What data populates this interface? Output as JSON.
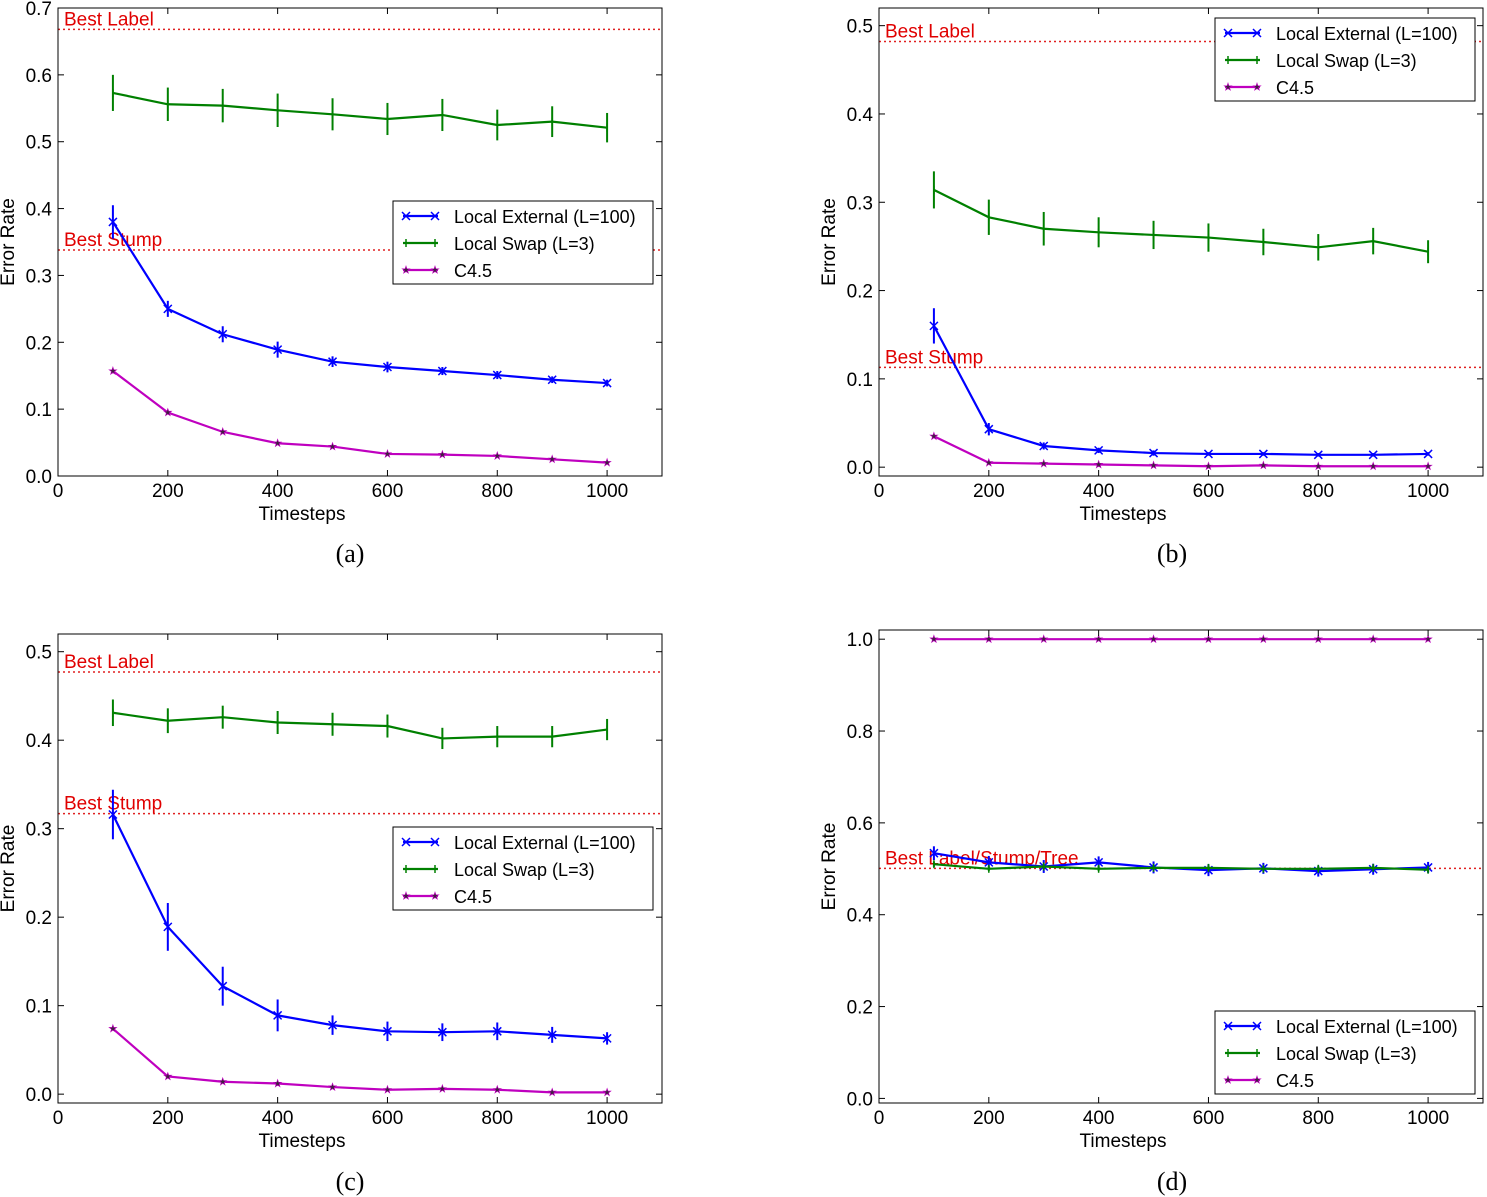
{
  "chart_data": [
    {
      "id": "a",
      "type": "line",
      "caption": "(a)",
      "xlabel": "Timesteps",
      "ylabel": "Error Rate",
      "xlim": [
        0,
        1100
      ],
      "ylim": [
        0,
        0.7
      ],
      "xticks": [
        "0",
        "200",
        "400",
        "600",
        "800",
        "1000"
      ],
      "yticks": [
        "0.0",
        "0.1",
        "0.2",
        "0.3",
        "0.4",
        "0.5",
        "0.6",
        "0.7"
      ],
      "legend_position": "center-right",
      "x": [
        100,
        200,
        300,
        400,
        500,
        600,
        700,
        800,
        900,
        1000
      ],
      "series": [
        {
          "name": "Local External (L=100)",
          "color": "#0000ff",
          "marker": "x",
          "values": [
            0.38,
            0.25,
            0.212,
            0.189,
            0.171,
            0.163,
            0.157,
            0.151,
            0.144,
            0.139
          ],
          "errors": [
            0.025,
            0.012,
            0.012,
            0.012,
            0.008,
            0.008,
            0.006,
            0.006,
            0.005,
            0.005
          ]
        },
        {
          "name": "Local Swap (L=3)",
          "color": "#008000",
          "marker": "|",
          "values": [
            0.573,
            0.556,
            0.554,
            0.547,
            0.541,
            0.534,
            0.54,
            0.525,
            0.53,
            0.521
          ],
          "errors": [
            0.027,
            0.025,
            0.025,
            0.025,
            0.024,
            0.024,
            0.024,
            0.023,
            0.023,
            0.022
          ]
        },
        {
          "name": "C4.5",
          "color": "#bf00bf",
          "marker": "*",
          "values": [
            0.157,
            0.095,
            0.066,
            0.049,
            0.044,
            0.033,
            0.032,
            0.03,
            0.025,
            0.02
          ],
          "errors": [
            0,
            0,
            0,
            0,
            0,
            0,
            0,
            0,
            0,
            0
          ]
        }
      ],
      "reference_lines": [
        {
          "label": "Best Label",
          "value": 0.668
        },
        {
          "label": "Best Stump",
          "value": 0.338
        }
      ]
    },
    {
      "id": "b",
      "type": "line",
      "caption": "(b)",
      "xlabel": "Timesteps",
      "ylabel": "Error Rate",
      "xlim": [
        0,
        1100
      ],
      "ylim": [
        -0.01,
        0.52
      ],
      "xticks": [
        "0",
        "200",
        "400",
        "600",
        "800",
        "1000"
      ],
      "yticks": [
        "0.0",
        "0.1",
        "0.2",
        "0.3",
        "0.4",
        "0.5"
      ],
      "legend_position": "top-right",
      "x": [
        100,
        200,
        300,
        400,
        500,
        600,
        700,
        800,
        900,
        1000
      ],
      "series": [
        {
          "name": "Local External (L=100)",
          "color": "#0000ff",
          "marker": "x",
          "values": [
            0.16,
            0.043,
            0.024,
            0.019,
            0.016,
            0.015,
            0.015,
            0.014,
            0.014,
            0.015
          ],
          "errors": [
            0.02,
            0.007,
            0.004,
            0.003,
            0.003,
            0.002,
            0.002,
            0.002,
            0.002,
            0.002
          ]
        },
        {
          "name": "Local Swap (L=3)",
          "color": "#008000",
          "marker": "|",
          "values": [
            0.314,
            0.283,
            0.27,
            0.266,
            0.263,
            0.26,
            0.255,
            0.249,
            0.256,
            0.244
          ],
          "errors": [
            0.021,
            0.02,
            0.019,
            0.017,
            0.016,
            0.016,
            0.015,
            0.015,
            0.015,
            0.013
          ]
        },
        {
          "name": "C4.5",
          "color": "#bf00bf",
          "marker": "*",
          "values": [
            0.035,
            0.005,
            0.004,
            0.003,
            0.002,
            0.001,
            0.002,
            0.001,
            0.001,
            0.001
          ],
          "errors": [
            0,
            0,
            0,
            0,
            0,
            0,
            0,
            0,
            0,
            0
          ]
        }
      ],
      "reference_lines": [
        {
          "label": "Best Label",
          "value": 0.482
        },
        {
          "label": "Best Stump",
          "value": 0.113
        }
      ]
    },
    {
      "id": "c",
      "type": "line",
      "caption": "(c)",
      "xlabel": "Timesteps",
      "ylabel": "Error Rate",
      "xlim": [
        0,
        1100
      ],
      "ylim": [
        -0.01,
        0.52
      ],
      "xticks": [
        "0",
        "200",
        "400",
        "600",
        "800",
        "1000"
      ],
      "yticks": [
        "0.0",
        "0.1",
        "0.2",
        "0.3",
        "0.4",
        "0.5"
      ],
      "legend_position": "center-right",
      "x": [
        100,
        200,
        300,
        400,
        500,
        600,
        700,
        800,
        900,
        1000
      ],
      "series": [
        {
          "name": "Local External (L=100)",
          "color": "#0000ff",
          "marker": "x",
          "values": [
            0.316,
            0.189,
            0.122,
            0.089,
            0.078,
            0.071,
            0.07,
            0.071,
            0.067,
            0.063
          ],
          "errors": [
            0.028,
            0.027,
            0.022,
            0.018,
            0.011,
            0.011,
            0.01,
            0.01,
            0.009,
            0.007
          ]
        },
        {
          "name": "Local Swap (L=3)",
          "color": "#008000",
          "marker": "|",
          "values": [
            0.431,
            0.422,
            0.426,
            0.42,
            0.418,
            0.416,
            0.402,
            0.404,
            0.404,
            0.412
          ],
          "errors": [
            0.015,
            0.014,
            0.013,
            0.013,
            0.013,
            0.013,
            0.012,
            0.012,
            0.012,
            0.012
          ]
        },
        {
          "name": "C4.5",
          "color": "#bf00bf",
          "marker": "*",
          "values": [
            0.074,
            0.02,
            0.014,
            0.012,
            0.008,
            0.005,
            0.006,
            0.005,
            0.002,
            0.002
          ],
          "errors": [
            0,
            0,
            0,
            0,
            0,
            0,
            0,
            0,
            0,
            0
          ]
        }
      ],
      "reference_lines": [
        {
          "label": "Best Label",
          "value": 0.477
        },
        {
          "label": "Best Stump",
          "value": 0.317
        }
      ]
    },
    {
      "id": "d",
      "type": "line",
      "caption": "(d)",
      "xlabel": "Timesteps",
      "ylabel": "Error Rate",
      "xlim": [
        0,
        1100
      ],
      "ylim": [
        -0.01,
        1.02
      ],
      "xticks": [
        "0",
        "200",
        "400",
        "600",
        "800",
        "1000"
      ],
      "yticks": [
        "0.0",
        "0.2",
        "0.4",
        "0.6",
        "0.8",
        "1.0"
      ],
      "legend_position": "lower-right",
      "x": [
        100,
        200,
        300,
        400,
        500,
        600,
        700,
        800,
        900,
        1000
      ],
      "series": [
        {
          "name": "Local External (L=100)",
          "color": "#0000ff",
          "marker": "x",
          "values": [
            0.534,
            0.514,
            0.505,
            0.514,
            0.503,
            0.497,
            0.501,
            0.495,
            0.499,
            0.503
          ],
          "errors": [
            0.015,
            0.014,
            0.014,
            0.013,
            0.013,
            0.013,
            0.012,
            0.012,
            0.012,
            0.012
          ]
        },
        {
          "name": "Local Swap (L=3)",
          "color": "#008000",
          "marker": "|",
          "values": [
            0.51,
            0.5,
            0.505,
            0.5,
            0.502,
            0.502,
            0.5,
            0.5,
            0.502,
            0.498
          ],
          "errors": [
            0.006,
            0.005,
            0.005,
            0.005,
            0.005,
            0.005,
            0.005,
            0.005,
            0.005,
            0.005
          ]
        },
        {
          "name": "C4.5",
          "color": "#bf00bf",
          "marker": "*",
          "values": [
            1.0,
            1.0,
            1.0,
            1.0,
            1.0,
            1.0,
            1.0,
            1.0,
            1.0,
            1.0
          ],
          "errors": [
            0,
            0,
            0,
            0,
            0,
            0,
            0,
            0,
            0,
            0
          ]
        }
      ],
      "reference_lines": [
        {
          "label": "Best Label/Stump/Tree",
          "value": 0.501
        }
      ]
    }
  ]
}
